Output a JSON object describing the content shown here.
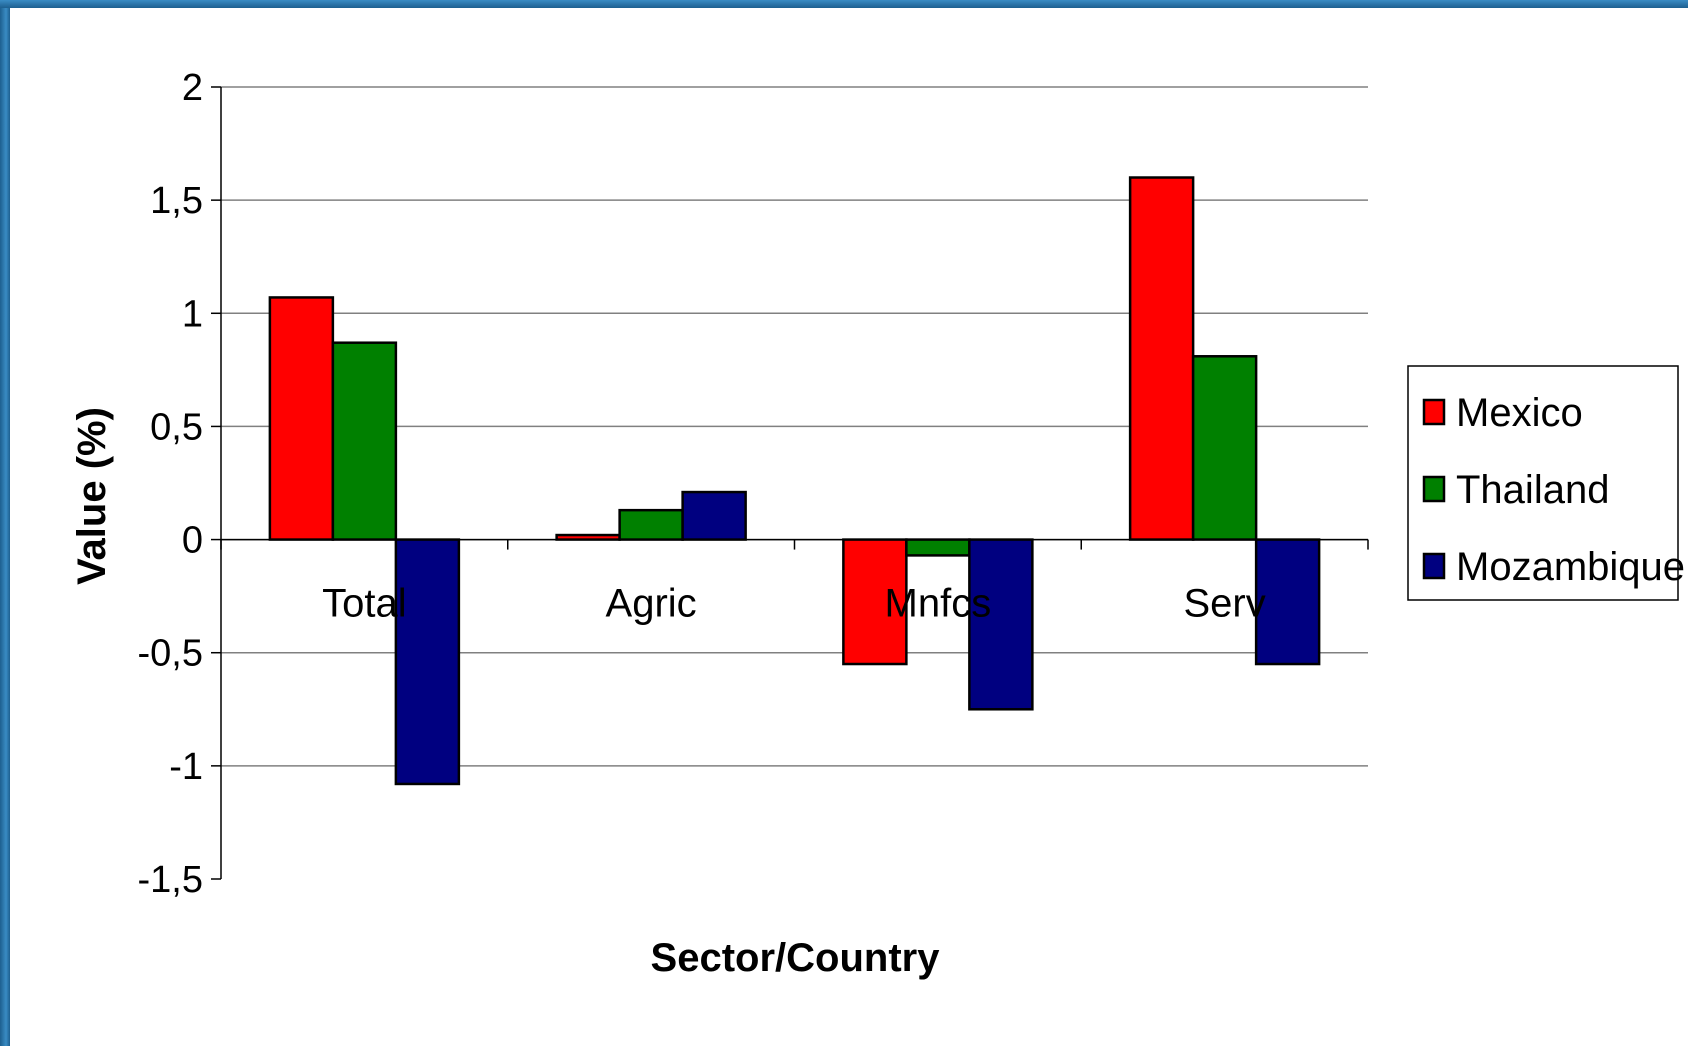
{
  "chart_data": {
    "type": "bar",
    "categories": [
      "Total",
      "Agric",
      "Mnfcs",
      "Serv"
    ],
    "series": [
      {
        "name": "Mexico",
        "color": "#ff0000",
        "values": [
          1.07,
          0.02,
          -0.55,
          1.6
        ]
      },
      {
        "name": "Thailand",
        "color": "#008000",
        "values": [
          0.87,
          0.13,
          -0.07,
          0.81
        ]
      },
      {
        "name": "Mozambique",
        "color": "#000080",
        "values": [
          -1.08,
          0.21,
          -0.75,
          -0.55
        ]
      }
    ],
    "xlabel": "Sector/Country",
    "ylabel": "Value (%)",
    "ylim": [
      -1.5,
      2
    ],
    "yticks": [
      2,
      1.5,
      1,
      0.5,
      0,
      -0.5,
      -1,
      -1.5
    ],
    "ytick_labels": [
      "2",
      "1,5",
      "1",
      "0,5",
      "0",
      "-0,5",
      "-1",
      "-1,5"
    ],
    "grid": true,
    "legend_position": "right"
  }
}
